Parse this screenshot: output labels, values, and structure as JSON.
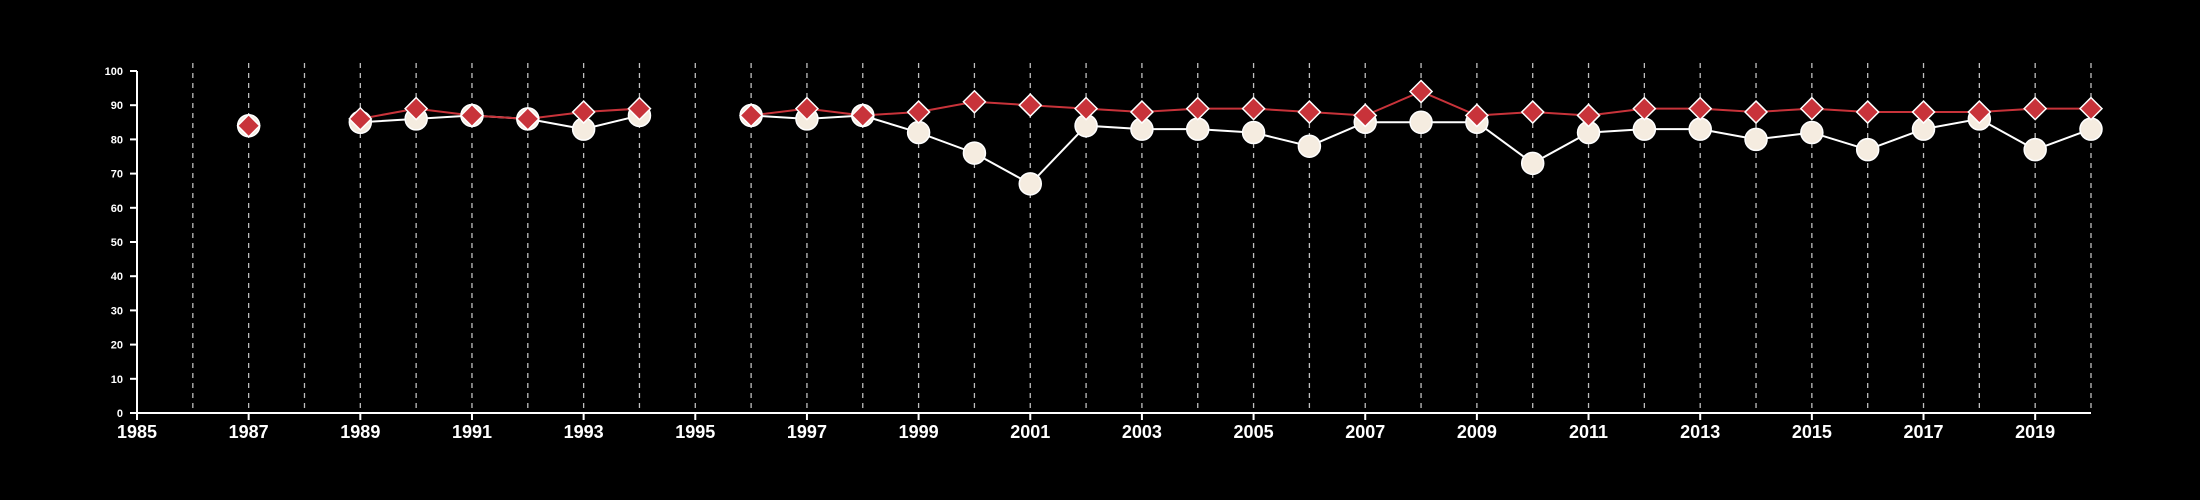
{
  "chart_data": {
    "type": "line",
    "xlim": [
      1985,
      2020
    ],
    "ylim": [
      0,
      100
    ],
    "x_ticks": [
      1985,
      1987,
      1989,
      1991,
      1993,
      1995,
      1997,
      1999,
      2001,
      2003,
      2005,
      2007,
      2009,
      2011,
      2013,
      2015,
      2017,
      2019
    ],
    "y_ticks": [
      0,
      10,
      20,
      30,
      40,
      50,
      60,
      70,
      80,
      90,
      100
    ],
    "vertical_dashed_grid": true,
    "grid_years": [
      1986,
      1987,
      1988,
      1989,
      1990,
      1991,
      1992,
      1993,
      1994,
      1995,
      1996,
      1997,
      1998,
      1999,
      2000,
      2001,
      2002,
      2003,
      2004,
      2005,
      2006,
      2007,
      2008,
      2009,
      2010,
      2011,
      2012,
      2013,
      2014,
      2015,
      2016,
      2017,
      2018,
      2019,
      2020
    ],
    "background": "#000000",
    "axis_color": "#ffffff",
    "series": [
      {
        "marker": "circle",
        "line_color": "#ffffff",
        "marker_color": "#f5ece0",
        "points": [
          [
            1987,
            84
          ],
          [
            1989,
            85
          ],
          [
            1990,
            86
          ],
          [
            1991,
            87
          ],
          [
            1992,
            86
          ],
          [
            1993,
            83
          ],
          [
            1994,
            87
          ],
          [
            1996,
            87
          ],
          [
            1997,
            86
          ],
          [
            1998,
            87
          ],
          [
            1999,
            82
          ],
          [
            2000,
            76
          ],
          [
            2001,
            67
          ],
          [
            2002,
            84
          ],
          [
            2003,
            83
          ],
          [
            2004,
            83
          ],
          [
            2005,
            82
          ],
          [
            2006,
            78
          ],
          [
            2007,
            85
          ],
          [
            2008,
            85
          ],
          [
            2009,
            85
          ],
          [
            2010,
            73
          ],
          [
            2011,
            82
          ],
          [
            2012,
            83
          ],
          [
            2013,
            83
          ],
          [
            2014,
            80
          ],
          [
            2015,
            82
          ],
          [
            2016,
            77
          ],
          [
            2017,
            83
          ],
          [
            2018,
            86
          ],
          [
            2019,
            77
          ],
          [
            2020,
            83
          ]
        ]
      },
      {
        "marker": "diamond",
        "line_color": "#c8333a",
        "marker_color": "#c8333a",
        "points": [
          [
            1987,
            84
          ],
          [
            1989,
            86
          ],
          [
            1990,
            89
          ],
          [
            1991,
            87
          ],
          [
            1992,
            86
          ],
          [
            1993,
            88
          ],
          [
            1994,
            89
          ],
          [
            1996,
            87
          ],
          [
            1997,
            89
          ],
          [
            1998,
            87
          ],
          [
            1999,
            88
          ],
          [
            2000,
            91
          ],
          [
            2001,
            90
          ],
          [
            2002,
            89
          ],
          [
            2003,
            88
          ],
          [
            2004,
            89
          ],
          [
            2005,
            89
          ],
          [
            2006,
            88
          ],
          [
            2007,
            87
          ],
          [
            2008,
            94
          ],
          [
            2009,
            87
          ],
          [
            2010,
            88
          ],
          [
            2011,
            87
          ],
          [
            2012,
            89
          ],
          [
            2013,
            89
          ],
          [
            2014,
            88
          ],
          [
            2015,
            89
          ],
          [
            2016,
            88
          ],
          [
            2017,
            88
          ],
          [
            2018,
            88
          ],
          [
            2019,
            89
          ],
          [
            2020,
            89
          ]
        ]
      }
    ]
  }
}
